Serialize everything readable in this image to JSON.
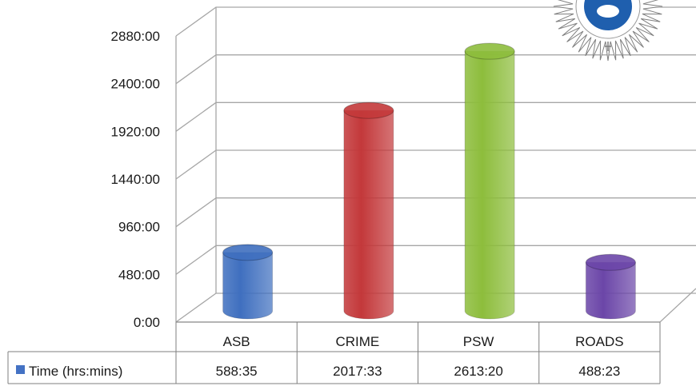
{
  "chart_data": {
    "type": "bar",
    "style": "3d-cylinder",
    "categories": [
      "ASB",
      "CRIME",
      "PSW",
      "ROADS"
    ],
    "series": [
      {
        "name": "Time (hrs:mins)",
        "values": [
          588.583,
          2017.55,
          2613.333,
          488.383
        ],
        "labels": [
          "588:35",
          "2017:33",
          "2613:20",
          "488:23"
        ],
        "color": "#4472c4"
      }
    ],
    "bar_colors": [
      "#3f6fbf",
      "#c3383a",
      "#8dbd3c",
      "#6b46a8"
    ],
    "y_ticks": [
      "0:00",
      "480:00",
      "960:00",
      "1440:00",
      "1920:00",
      "2400:00",
      "2880:00"
    ],
    "y_tick_values": [
      0,
      480,
      960,
      1440,
      1920,
      2400,
      2880
    ],
    "ylim": [
      0,
      2880
    ],
    "grid": true,
    "data_table": true,
    "title": "",
    "xlabel": "",
    "ylabel": ""
  },
  "logo": {
    "name": "police-badge"
  }
}
